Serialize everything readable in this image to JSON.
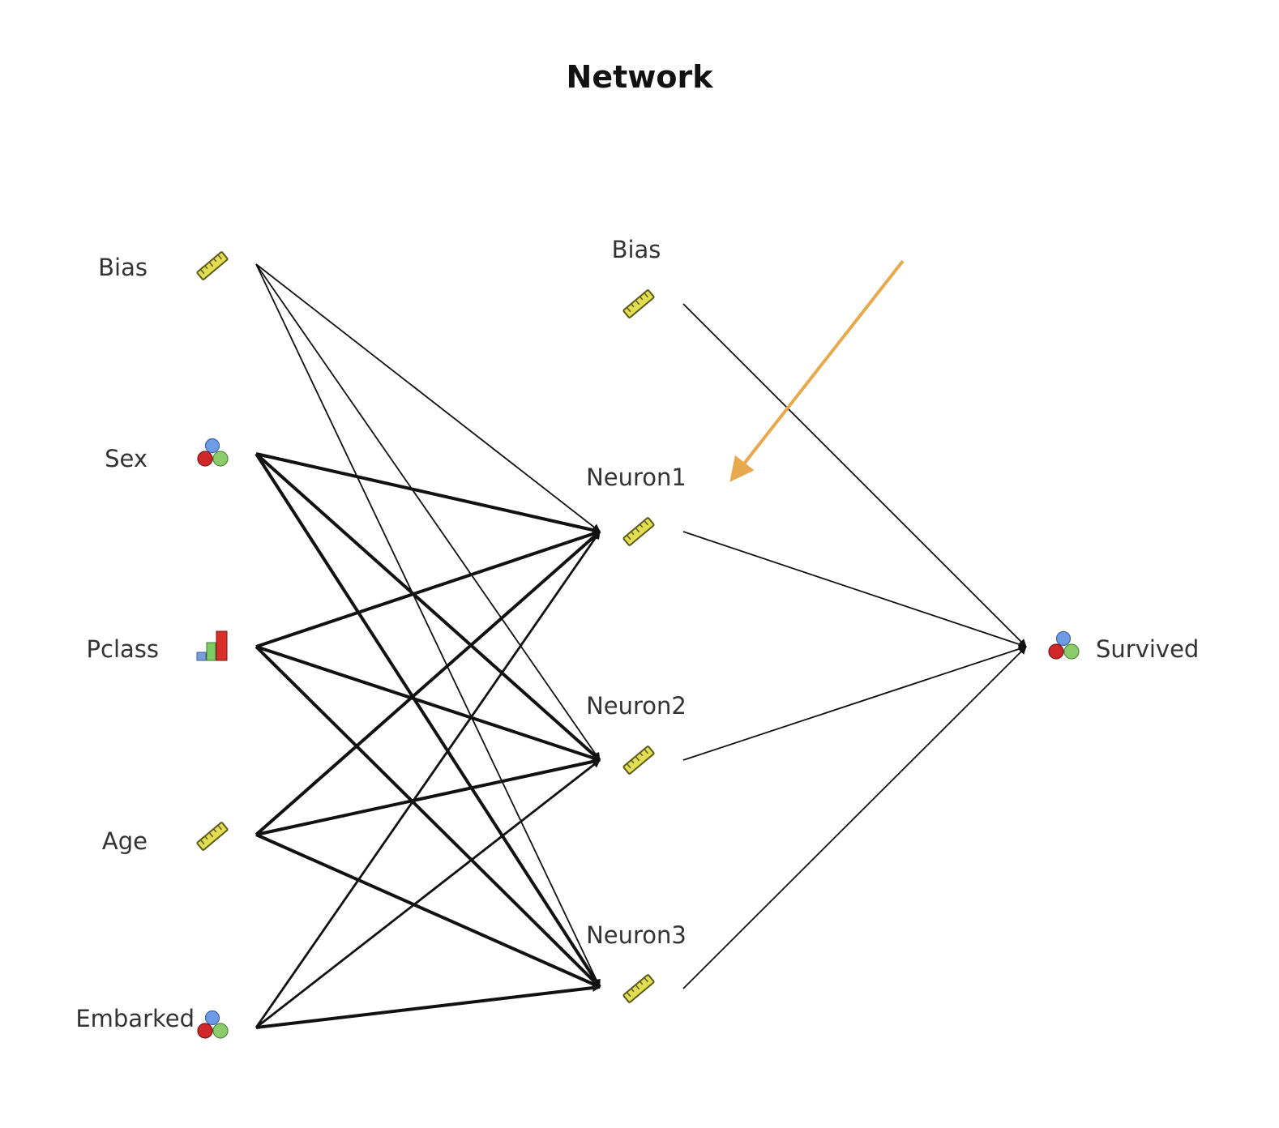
{
  "title": "Network",
  "input_layer": [
    {
      "id": "in-bias",
      "label": "Bias",
      "icon": "ruler-icon"
    },
    {
      "id": "in-sex",
      "label": "Sex",
      "icon": "nominal-spheres-icon"
    },
    {
      "id": "in-pclass",
      "label": "Pclass",
      "icon": "bar-chart-icon"
    },
    {
      "id": "in-age",
      "label": "Age",
      "icon": "ruler-icon"
    },
    {
      "id": "in-embarked",
      "label": "Embarked",
      "icon": "nominal-spheres-icon"
    }
  ],
  "hidden_layer": [
    {
      "id": "h-bias",
      "label": "Bias",
      "icon": "ruler-icon"
    },
    {
      "id": "h-neuron1",
      "label": "Neuron1",
      "icon": "ruler-icon"
    },
    {
      "id": "h-neuron2",
      "label": "Neuron2",
      "icon": "ruler-icon"
    },
    {
      "id": "h-neuron3",
      "label": "Neuron3",
      "icon": "ruler-icon"
    }
  ],
  "output_layer": [
    {
      "id": "out-survived",
      "label": "Survived",
      "icon": "nominal-spheres-icon"
    }
  ],
  "connections": [
    {
      "from": "in-bias",
      "to": "h-neuron1",
      "weight": "thin"
    },
    {
      "from": "in-bias",
      "to": "h-neuron2",
      "weight": "thin"
    },
    {
      "from": "in-bias",
      "to": "h-neuron3",
      "weight": "thin"
    },
    {
      "from": "in-sex",
      "to": "h-neuron1",
      "weight": "thick"
    },
    {
      "from": "in-sex",
      "to": "h-neuron2",
      "weight": "thick"
    },
    {
      "from": "in-sex",
      "to": "h-neuron3",
      "weight": "thick"
    },
    {
      "from": "in-pclass",
      "to": "h-neuron1",
      "weight": "thick"
    },
    {
      "from": "in-pclass",
      "to": "h-neuron2",
      "weight": "thick"
    },
    {
      "from": "in-pclass",
      "to": "h-neuron3",
      "weight": "thick"
    },
    {
      "from": "in-age",
      "to": "h-neuron1",
      "weight": "thick"
    },
    {
      "from": "in-age",
      "to": "h-neuron2",
      "weight": "thick"
    },
    {
      "from": "in-age",
      "to": "h-neuron3",
      "weight": "thick"
    },
    {
      "from": "in-embarked",
      "to": "h-neuron1",
      "weight": "medium"
    },
    {
      "from": "in-embarked",
      "to": "h-neuron2",
      "weight": "medium"
    },
    {
      "from": "in-embarked",
      "to": "h-neuron3",
      "weight": "thick"
    },
    {
      "from": "h-bias",
      "to": "out-survived",
      "weight": "thin"
    },
    {
      "from": "h-neuron1",
      "to": "out-survived",
      "weight": "thin"
    },
    {
      "from": "h-neuron2",
      "to": "out-survived",
      "weight": "thin"
    },
    {
      "from": "h-neuron3",
      "to": "out-survived",
      "weight": "thin"
    }
  ],
  "annotation": {
    "name": "orange-pointer-arrow",
    "target": "h-neuron1",
    "color": "#E8A84C"
  },
  "colors": {
    "edge": "#111111",
    "ruler_fill": "#E2DE52",
    "ruler_stroke": "#5E5A1C",
    "sphere_blue": "#6E9BE6",
    "sphere_red": "#D0282A",
    "sphere_green": "#8CCB6A",
    "bar_blue": "#7A9FD8",
    "bar_green": "#7DCB62",
    "bar_red": "#D83028"
  }
}
